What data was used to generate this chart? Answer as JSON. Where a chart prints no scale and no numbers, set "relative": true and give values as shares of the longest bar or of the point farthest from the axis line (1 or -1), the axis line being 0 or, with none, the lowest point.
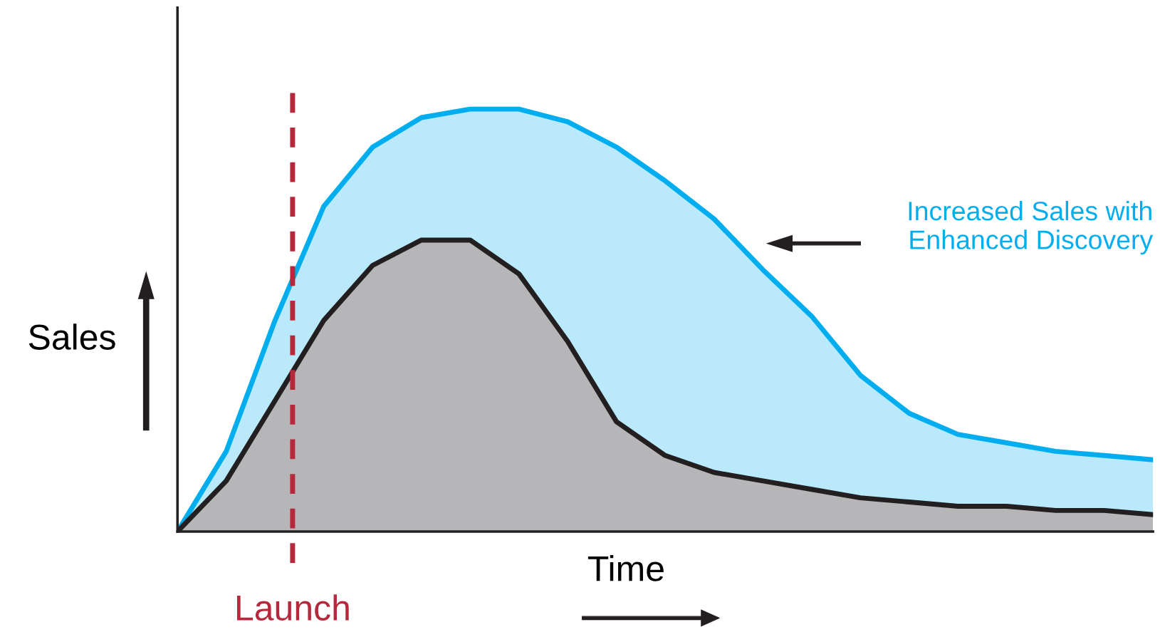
{
  "chart_data": {
    "type": "area",
    "relative": true,
    "xlabel": "Time",
    "ylabel": "Sales",
    "categories": [
      null,
      null,
      null,
      null,
      null,
      null,
      null,
      null,
      null,
      null,
      null,
      null,
      null,
      null,
      null,
      null,
      null,
      null,
      null,
      null,
      null
    ],
    "series": [
      {
        "color": "#00aeef",
        "values": [
          0,
          0.19,
          0.5,
          0.77,
          0.91,
          0.98,
          1.0,
          1.0,
          0.97,
          0.91,
          0.83,
          0.74,
          0.62,
          0.51,
          0.37,
          0.28,
          0.23,
          0.21,
          0.19,
          0.18,
          0.17
        ]
      },
      {
        "color": "#231f20",
        "values": [
          0,
          0.12,
          0.31,
          0.5,
          0.63,
          0.69,
          0.69,
          0.61,
          0.45,
          0.26,
          0.18,
          0.14,
          0.12,
          0.1,
          0.08,
          0.07,
          0.06,
          0.06,
          0.05,
          0.05,
          0.04
        ]
      }
    ],
    "annotations": [
      "Increased Sales with\nEnhanced Discovery",
      "Launch"
    ],
    "grid": false
  }
}
